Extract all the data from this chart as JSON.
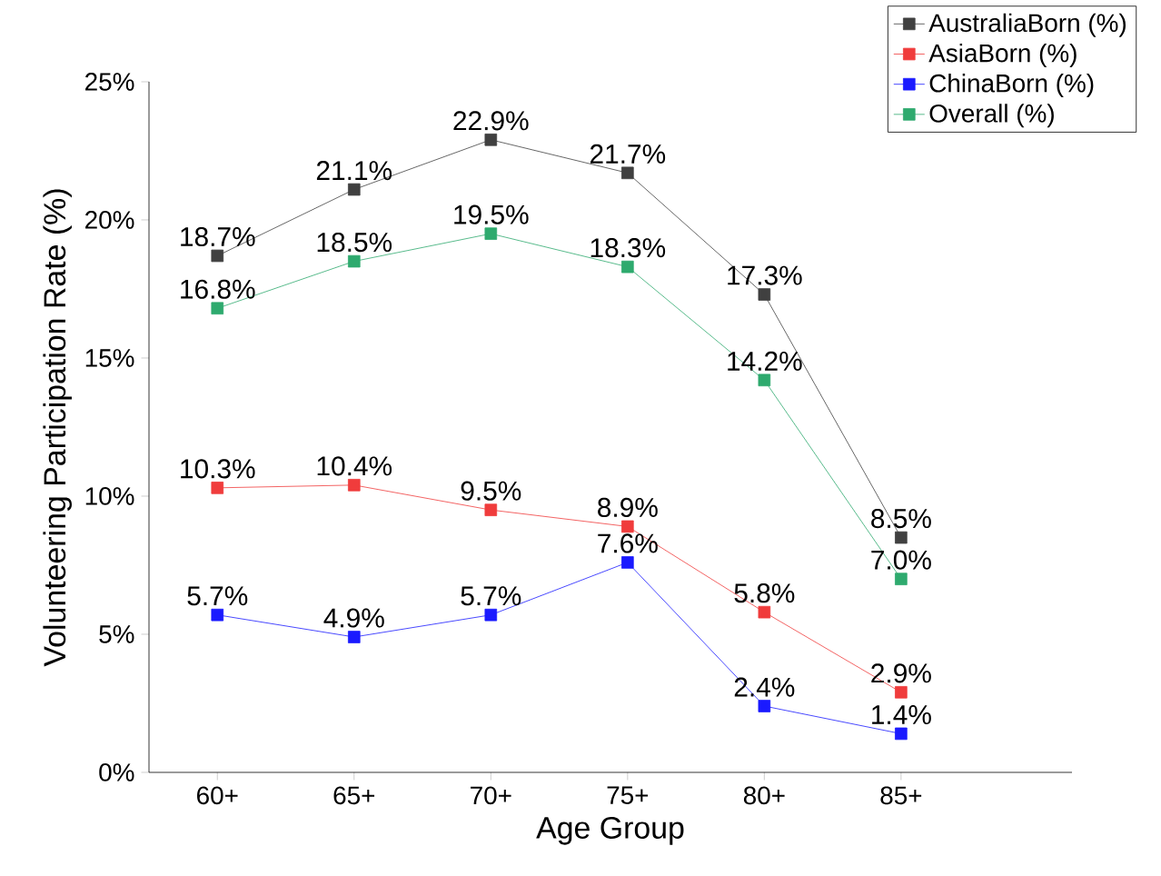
{
  "chart_data": {
    "type": "line",
    "xlabel": "Age Group",
    "ylabel": "Volunteering Participation Rate (%)",
    "categories": [
      "60+",
      "65+",
      "70+",
      "75+",
      "80+",
      "85+"
    ],
    "series": [
      {
        "name": "AustraliaBorn (%)",
        "color": "#404040",
        "values": [
          18.7,
          21.1,
          22.9,
          21.7,
          17.3,
          8.5
        ],
        "value_labels": [
          "18.7%",
          "21.1%",
          "22.9%",
          "21.7%",
          "17.3%",
          "8.5%"
        ]
      },
      {
        "name": "AsiaBorn (%)",
        "color": "#f03c3c",
        "values": [
          10.3,
          10.4,
          9.5,
          8.9,
          5.8,
          2.9
        ],
        "value_labels": [
          "10.3%",
          "10.4%",
          "9.5%",
          "8.9%",
          "5.8%",
          "2.9%"
        ]
      },
      {
        "name": "ChinaBorn (%)",
        "color": "#1a1aff",
        "values": [
          5.7,
          4.9,
          5.7,
          7.6,
          2.4,
          1.4
        ],
        "value_labels": [
          "5.7%",
          "4.9%",
          "5.7%",
          "7.6%",
          "2.4%",
          "1.4%"
        ]
      },
      {
        "name": "Overall (%)",
        "color": "#2eaa6e",
        "values": [
          16.8,
          18.5,
          19.5,
          18.3,
          14.2,
          7.0
        ],
        "value_labels": [
          "16.8%",
          "18.5%",
          "19.5%",
          "18.3%",
          "14.2%",
          "7.0%"
        ]
      }
    ],
    "ylim": [
      0,
      25
    ],
    "yticks": [
      {
        "value": 0,
        "label": "0%"
      },
      {
        "value": 5,
        "label": "5%"
      },
      {
        "value": 10,
        "label": "10%"
      },
      {
        "value": 15,
        "label": "15%"
      },
      {
        "value": 20,
        "label": "20%"
      },
      {
        "value": 25,
        "label": "25%"
      }
    ],
    "grid": false,
    "legend": "top right",
    "marker": "square",
    "line_style": "solid"
  }
}
